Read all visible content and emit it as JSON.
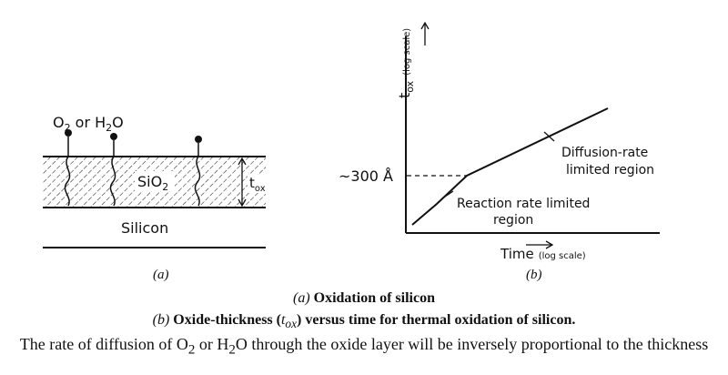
{
  "panel_a": {
    "molecule_label_o2": "O",
    "molecule_label_o2_sub": "2",
    "molecule_label_or": " or ",
    "molecule_label_h2o_h": "H",
    "molecule_label_h2o_sub": "2",
    "molecule_label_h2o_o": "O",
    "oxide_label_si": "SiO",
    "oxide_label_sub": "2",
    "thickness_label_t": "t",
    "thickness_label_sub": "ox",
    "substrate_label": "Silicon",
    "panel_label": "(a)"
  },
  "panel_b": {
    "y_axis_label_t": "t",
    "y_axis_label_sub": "ox",
    "y_axis_scale": "(log scale)",
    "x_axis_label": "Time",
    "x_axis_scale": "(log scale)",
    "marker_value": "~300 Å",
    "annotation_diffusion_1": "Diffusion-rate",
    "annotation_diffusion_2": "limited region",
    "annotation_reaction_1": "Reaction rate limited",
    "annotation_reaction_2": "region",
    "panel_label": "(b)"
  },
  "captions": {
    "caption_a_tag": "(a)",
    "caption_a_text": " Oxidation of silicon",
    "caption_b_tag": "(b)",
    "caption_b_text_1": " Oxide-thickness (",
    "caption_b_text_t": "t",
    "caption_b_text_sub": "ox",
    "caption_b_text_2": ") versus time for thermal oxidation of silicon."
  },
  "body_text": {
    "part1": "The rate of diffusion of O",
    "sub1": "2",
    "part2": " or H",
    "sub2": "2",
    "part3": "O through the oxide layer will be inversely proportional to the thickness"
  }
}
